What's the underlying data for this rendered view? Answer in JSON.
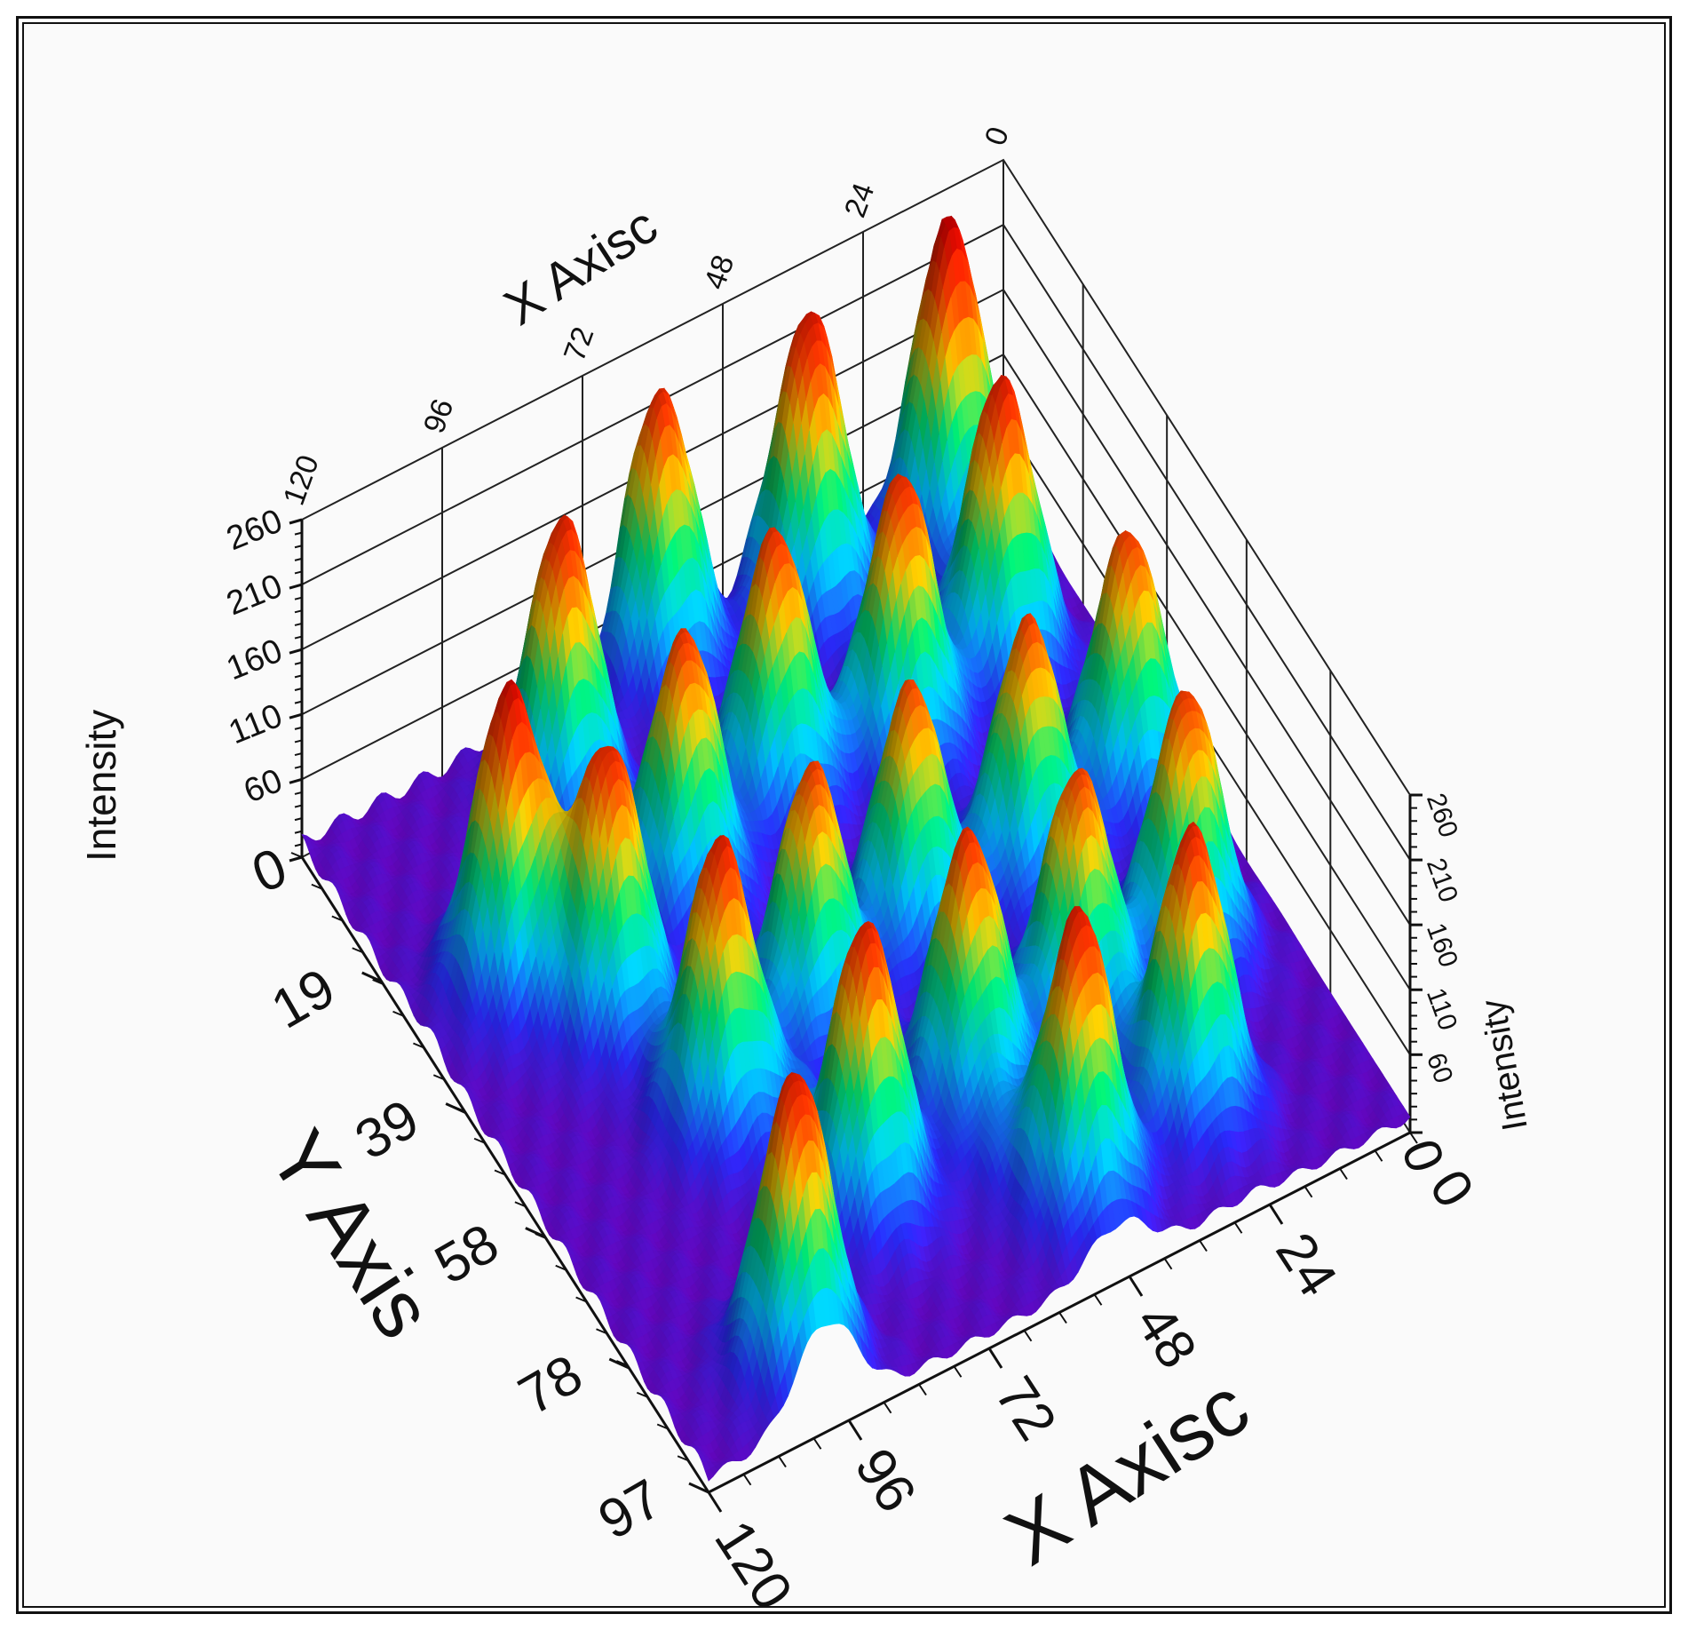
{
  "chart_data": {
    "type": "surface3d",
    "title": "",
    "xlabel": "X Axisc",
    "ylabel": "Y Axis",
    "zlabel": "Intensity",
    "x_range": [
      0,
      120
    ],
    "y_range": [
      0,
      97
    ],
    "z_range": [
      0,
      260
    ],
    "x_ticks": [
      "0",
      "24",
      "48",
      "72",
      "96",
      "120"
    ],
    "y_ticks": [
      "19",
      "39",
      "58",
      "78",
      "97"
    ],
    "z_ticks": [
      "0",
      "60",
      "110",
      "160",
      "210",
      "260"
    ],
    "right_z_ticks": [
      "0",
      "60",
      "110",
      "160",
      "210",
      "260"
    ],
    "colormap": [
      "#7a00c8",
      "#2a2aff",
      "#00c0ff",
      "#00e070",
      "#f0c000",
      "#ff4000",
      "#d00000"
    ],
    "grid": true,
    "peaks": [
      {
        "x": 12,
        "y": 4,
        "z": 262
      },
      {
        "x": 36,
        "y": 4,
        "z": 248
      },
      {
        "x": 60,
        "y": 2,
        "z": 232
      },
      {
        "x": 84,
        "y": 12,
        "z": 238
      },
      {
        "x": 106,
        "y": 30,
        "z": 250
      },
      {
        "x": 16,
        "y": 22,
        "z": 240
      },
      {
        "x": 36,
        "y": 26,
        "z": 230
      },
      {
        "x": 56,
        "y": 24,
        "z": 225
      },
      {
        "x": 76,
        "y": 30,
        "z": 224
      },
      {
        "x": 96,
        "y": 40,
        "z": 232
      },
      {
        "x": 10,
        "y": 44,
        "z": 220
      },
      {
        "x": 30,
        "y": 48,
        "z": 215
      },
      {
        "x": 50,
        "y": 48,
        "z": 212
      },
      {
        "x": 70,
        "y": 52,
        "z": 218
      },
      {
        "x": 90,
        "y": 58,
        "z": 236
      },
      {
        "x": 16,
        "y": 66,
        "z": 222
      },
      {
        "x": 36,
        "y": 68,
        "z": 218
      },
      {
        "x": 56,
        "y": 70,
        "z": 226
      },
      {
        "x": 78,
        "y": 76,
        "z": 238
      },
      {
        "x": 100,
        "y": 90,
        "z": 245
      },
      {
        "x": 28,
        "y": 84,
        "z": 235
      },
      {
        "x": 50,
        "y": 88,
        "z": 240
      }
    ]
  }
}
